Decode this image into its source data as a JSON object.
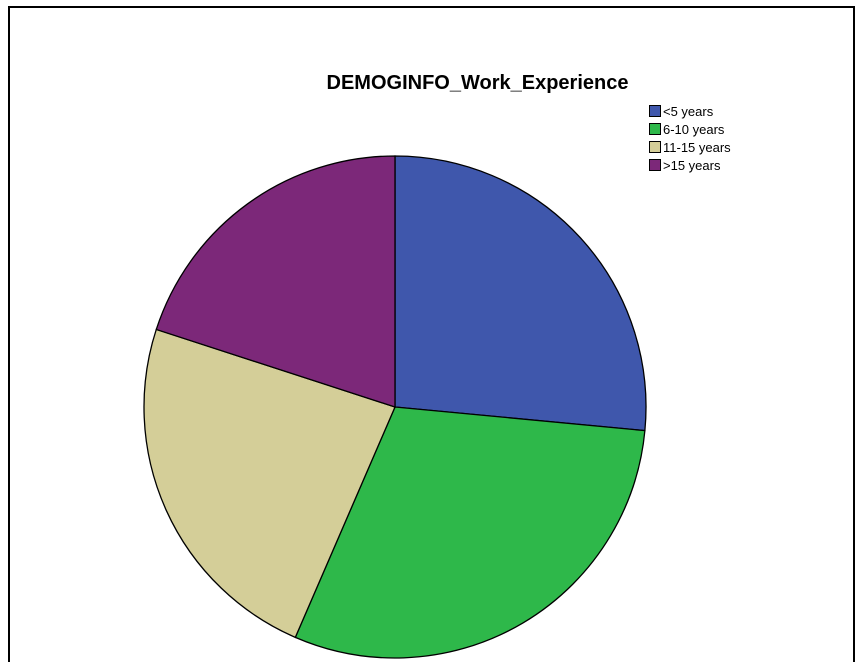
{
  "chart_data": {
    "type": "pie",
    "title": "DEMOGINFO_Work_Experience",
    "categories": [
      "<5 years",
      "6-10 years",
      "11-15 years",
      ">15 years"
    ],
    "values": [
      26.5,
      30.0,
      23.5,
      20.0
    ],
    "colors": [
      "#3F57AC",
      "#2EB84A",
      "#D4CE98",
      "#7C2879"
    ],
    "legend": "top-right",
    "start_angle_deg": 0,
    "direction": "clockwise"
  }
}
